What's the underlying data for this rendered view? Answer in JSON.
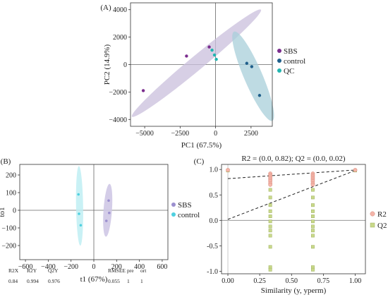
{
  "chart_data": [
    {
      "panel": "(A)",
      "type": "scatter",
      "title": "",
      "xlabel": "PC1 (67.5%)",
      "ylabel": "PC2 (14.9%)",
      "xlim": [
        -6000,
        4000
      ],
      "ylim": [
        -4500,
        4500
      ],
      "xticks": [
        -5000,
        -2500,
        0,
        2500
      ],
      "yticks": [
        -4000,
        -2000,
        0,
        2000,
        4000
      ],
      "grid": false,
      "legend_position": "right",
      "series": [
        {
          "name": "SBS",
          "color": "#7b2d8e",
          "ellipse_color": "#c9bfdc",
          "points": [
            {
              "x": -5100,
              "y": -1900
            },
            {
              "x": -2050,
              "y": 620
            },
            {
              "x": -450,
              "y": 1280
            }
          ]
        },
        {
          "name": "control",
          "color": "#1f5f8b",
          "ellipse_color": "#a8cfd9",
          "points": [
            {
              "x": 2200,
              "y": 90
            },
            {
              "x": 2550,
              "y": -150
            },
            {
              "x": 3100,
              "y": -2250
            }
          ]
        },
        {
          "name": "QC",
          "color": "#22b5b0",
          "points": [
            {
              "x": -250,
              "y": 1050
            },
            {
              "x": -80,
              "y": 700
            },
            {
              "x": 50,
              "y": 380
            }
          ]
        }
      ]
    },
    {
      "panel": "(B)",
      "type": "scatter",
      "title": "",
      "xlabel": "t1 (67%)",
      "ylabel": "to1",
      "xlim": [
        -650,
        650
      ],
      "ylim": [
        -280,
        260
      ],
      "xticks": [
        -600,
        -400,
        -200,
        0,
        200,
        400,
        600
      ],
      "yticks": [
        -200,
        -100,
        0,
        100,
        200
      ],
      "grid": false,
      "legend_position": "right",
      "series": [
        {
          "name": "SBS",
          "color": "#9b8fcf",
          "ellipse_color": "#cfc8e6",
          "points": [
            {
              "x": 130,
              "y": 55
            },
            {
              "x": 135,
              "y": -15
            },
            {
              "x": 110,
              "y": -60
            }
          ]
        },
        {
          "name": "control",
          "color": "#4fd0e0",
          "ellipse_color": "#bfeef3",
          "points": [
            {
              "x": -135,
              "y": 90
            },
            {
              "x": -130,
              "y": -20
            },
            {
              "x": -115,
              "y": -85
            }
          ]
        }
      ],
      "stats_table": {
        "headers": [
          "R2X",
          "R2Y",
          "Q2Y",
          "RMSEE",
          "pre",
          "ort"
        ],
        "values": [
          "0.84",
          "0.994",
          "0.976",
          "0.055",
          "1",
          "1"
        ]
      }
    },
    {
      "panel": "(C)",
      "type": "scatter",
      "title": "R2 = (0.0, 0.82); Q2 = (0.0, 0.02)",
      "xlabel": "Similarity (y, yperm)",
      "ylabel": "",
      "xlim": [
        -0.05,
        1.08
      ],
      "ylim": [
        -1.05,
        1.1
      ],
      "xticks": [
        0.0,
        0.25,
        0.5,
        0.75,
        1.0
      ],
      "xtick_labels": [
        "0.00",
        "0.25",
        "0.50",
        "0.75",
        "1.00"
      ],
      "yticks": [
        -1.0,
        -0.5,
        0.0,
        0.5,
        1.0
      ],
      "ytick_labels": [
        "-1.0",
        "-0.5",
        "0.0",
        "0.5",
        "1.0"
      ],
      "grid": false,
      "legend_position": "right",
      "series": [
        {
          "name": "R2",
          "color": "#f4b5a9",
          "marker": "circle",
          "x": [
            0.0,
            0.333,
            0.333,
            0.333,
            0.333,
            0.333,
            0.333,
            0.333,
            0.333,
            0.667,
            0.667,
            0.667,
            0.667,
            0.667,
            0.667,
            0.667,
            0.667,
            1.0
          ],
          "y": [
            0.99,
            0.92,
            0.89,
            0.86,
            0.83,
            0.8,
            0.77,
            0.73,
            0.7,
            0.92,
            0.89,
            0.86,
            0.83,
            0.8,
            0.77,
            0.73,
            0.7,
            0.99
          ]
        },
        {
          "name": "Q2",
          "color": "#c9d98a",
          "marker": "square",
          "x": [
            0.0,
            0.333,
            0.333,
            0.333,
            0.333,
            0.333,
            0.333,
            0.333,
            0.333,
            0.333,
            0.333,
            0.333,
            0.333,
            0.667,
            0.667,
            0.667,
            0.667,
            0.667,
            0.667,
            0.667,
            0.667,
            0.667,
            0.667,
            0.667,
            0.667,
            1.0
          ],
          "y": [
            0.98,
            0.6,
            0.45,
            0.3,
            0.18,
            0.08,
            -0.02,
            -0.12,
            -0.2,
            -0.3,
            -0.52,
            -0.92,
            -0.97,
            0.6,
            0.45,
            0.3,
            0.18,
            0.08,
            -0.02,
            -0.12,
            -0.2,
            -0.3,
            -0.52,
            -0.92,
            -0.97,
            0.98
          ]
        }
      ],
      "reference_lines": [
        {
          "name": "R2-line",
          "from": [
            0.0,
            0.82
          ],
          "to": [
            1.0,
            0.99
          ]
        },
        {
          "name": "Q2-line",
          "from": [
            0.0,
            0.02
          ],
          "to": [
            1.0,
            0.98
          ]
        }
      ]
    }
  ]
}
